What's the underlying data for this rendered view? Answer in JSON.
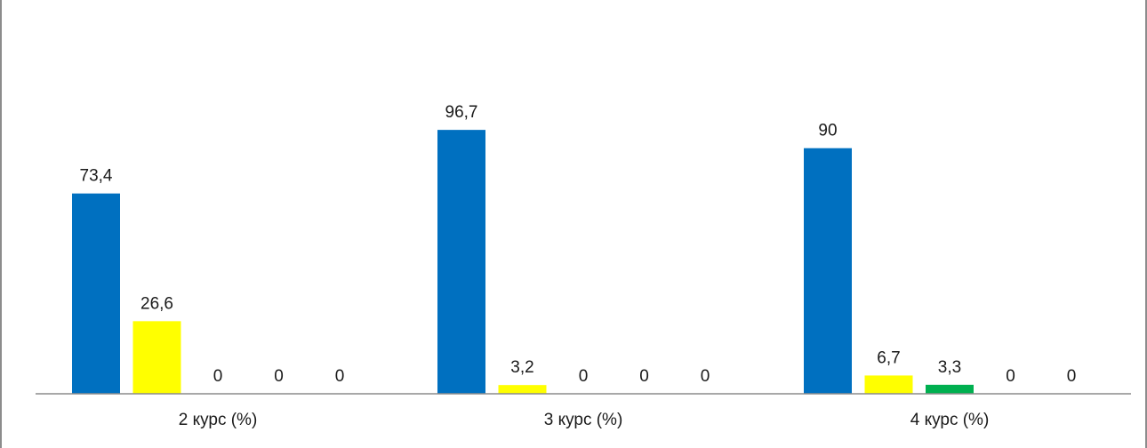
{
  "chart_data": {
    "type": "bar",
    "categories": [
      "2 курс (%)",
      "3 курс (%)",
      "4 курс (%)"
    ],
    "series": [
      {
        "color": "#0070c0",
        "values": [
          73.4,
          96.7,
          90
        ]
      },
      {
        "color": "#ffff00",
        "values": [
          26.6,
          3.2,
          6.7
        ]
      },
      {
        "color": "#00b050",
        "values": [
          0,
          0,
          3.3
        ]
      },
      {
        "color": "#c00000",
        "values": [
          0,
          0,
          0
        ]
      },
      {
        "color": "#7030a0",
        "values": [
          0,
          0,
          0
        ]
      }
    ],
    "value_labels": [
      [
        "73,4",
        "96,7",
        "90"
      ],
      [
        "26,6",
        "3,2",
        "6,7"
      ],
      [
        "0",
        "0",
        "3,3"
      ],
      [
        "0",
        "0",
        "0"
      ],
      [
        "0",
        "0",
        "0"
      ]
    ],
    "ylim": [
      0,
      100
    ],
    "grid": false,
    "legend": "none"
  }
}
